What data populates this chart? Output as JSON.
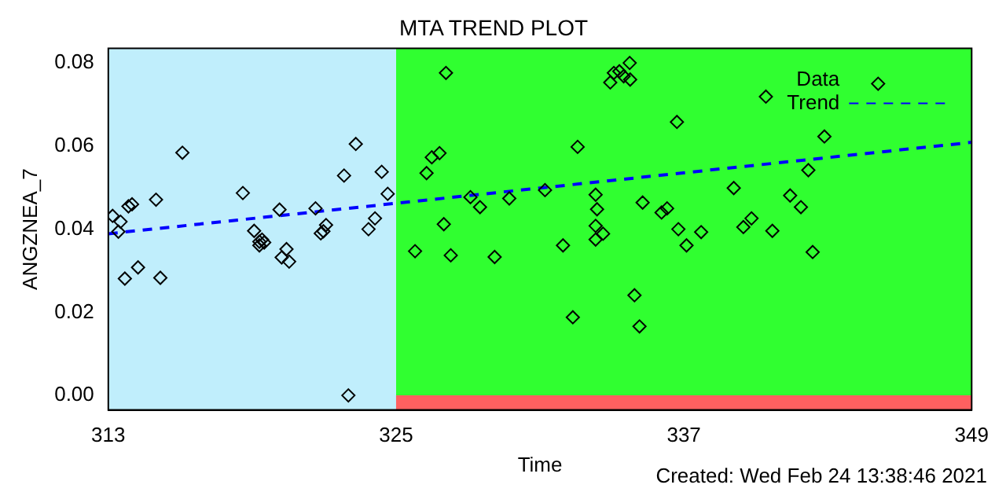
{
  "chart_data": {
    "type": "scatter",
    "title": "MTA TREND PLOT",
    "xlabel": "Time",
    "ylabel": "ANGZNEA_7",
    "xlim": [
      313,
      349
    ],
    "xticks": [
      313,
      325,
      337,
      349
    ],
    "ylim": [
      -0.0035,
      0.0835
    ],
    "yticks": [
      {
        "value": 0,
        "label": "0.00"
      },
      {
        "value": 0.02,
        "label": "0.02"
      },
      {
        "value": 0.04,
        "label": "0.04"
      },
      {
        "value": 0.06,
        "label": "0.06"
      },
      {
        "value": 0.08,
        "label": "0.08"
      }
    ],
    "grid": false,
    "legend": "top right",
    "bands": [
      {
        "axis": "x",
        "from": 325,
        "to": 349,
        "color": "#30ff30"
      },
      {
        "axis": "y",
        "from": -0.0035,
        "to": 0,
        "color": "#ff6060"
      },
      {
        "axis": "x",
        "from": 313,
        "to": 325,
        "color": "#c0eefc"
      }
    ],
    "series": [
      {
        "name": "Data",
        "type": "scatter",
        "color": "#000000",
        "marker": "diamond",
        "x": [
          313.18,
          313.51,
          313.42,
          313.69,
          313.84,
          313.99,
          314.24,
          314.99,
          315.17,
          316.09,
          318.61,
          319.08,
          319.3,
          319.41,
          319.5,
          319.3,
          320.14,
          320.23,
          320.43,
          320.54,
          321.64,
          321.86,
          321.97,
          322.08,
          322.83,
          323.01,
          323.32,
          323.85,
          324.12,
          324.4,
          324.65,
          325.79,
          326.27,
          326.49,
          326.81,
          326.99,
          327.08,
          327.28,
          328.1,
          328.5,
          329.11,
          329.72,
          331.21,
          331.96,
          332.37,
          332.57,
          333.32,
          333.38,
          333.32,
          333.63,
          333.32,
          333.93,
          334.08,
          334.31,
          334.49,
          334.74,
          334.76,
          334.94,
          335.15,
          335.28,
          336.07,
          336.3,
          336.71,
          336.77,
          337.11,
          337.72,
          339.08,
          339.48,
          339.82,
          340.42,
          340.69,
          341.43,
          341.88,
          342.19,
          342.37,
          342.86,
          345.1
        ],
        "values": [
          0.0432,
          0.0418,
          0.0394,
          0.0281,
          0.0455,
          0.046,
          0.0308,
          0.0471,
          0.0283,
          0.0584,
          0.0487,
          0.0396,
          0.037,
          0.0375,
          0.0368,
          0.0361,
          0.0447,
          0.0332,
          0.0352,
          0.0322,
          0.045,
          0.039,
          0.0395,
          0.041,
          0.0529,
          0.0,
          0.0605,
          0.04,
          0.0426,
          0.0538,
          0.0485,
          0.0347,
          0.0535,
          0.0573,
          0.0583,
          0.0412,
          0.0776,
          0.0337,
          0.0477,
          0.0453,
          0.0333,
          0.0474,
          0.0494,
          0.0361,
          0.0188,
          0.0598,
          0.0483,
          0.0448,
          0.0408,
          0.0389,
          0.0375,
          0.0753,
          0.0776,
          0.078,
          0.0768,
          0.08,
          0.076,
          0.0241,
          0.0166,
          0.0464,
          0.044,
          0.045,
          0.0658,
          0.04,
          0.0361,
          0.0393,
          0.0499,
          0.0405,
          0.0426,
          0.0719,
          0.0396,
          0.0481,
          0.0453,
          0.0542,
          0.0345,
          0.0623,
          0.075
        ]
      },
      {
        "name": "Trend",
        "type": "line",
        "color": "#0000ff",
        "marker": "none",
        "line_style": "dashed",
        "x": [
          313,
          349
        ],
        "values": [
          0.0389,
          0.0609
        ]
      }
    ],
    "annotations": [
      "Created: Wed Feb 24 13:38:46 2021"
    ]
  }
}
